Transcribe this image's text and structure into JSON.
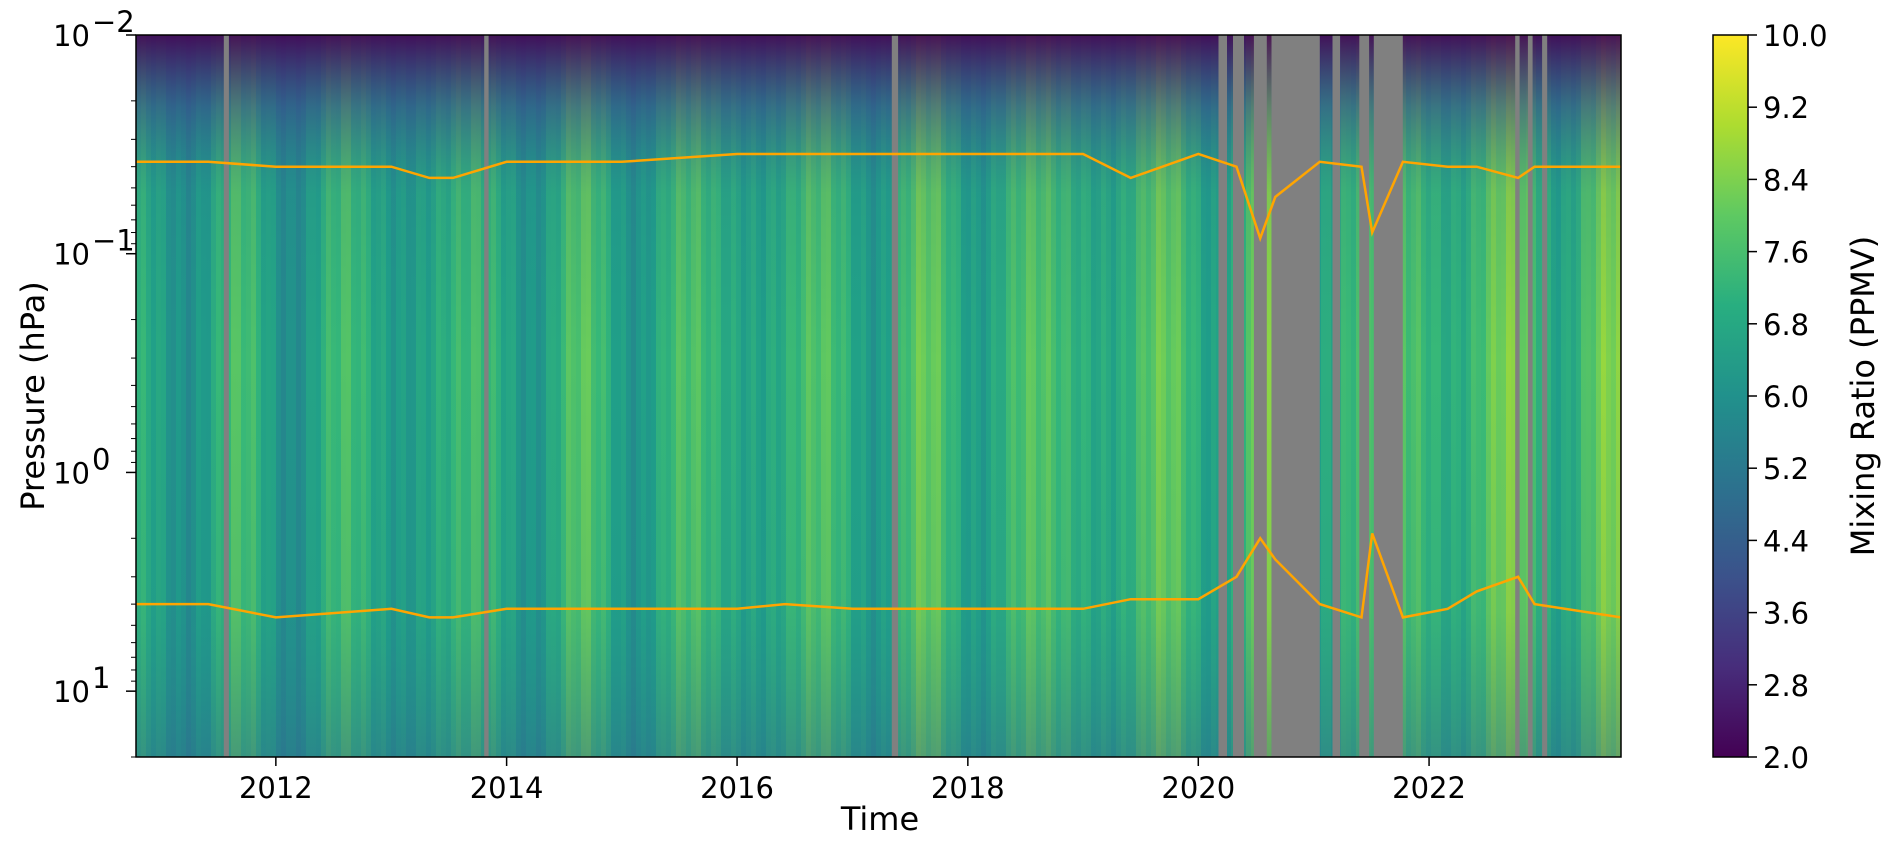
{
  "chart_data": {
    "type": "heatmap",
    "xlabel": "Time",
    "ylabel": "Pressure (hPa)",
    "x_axis": {
      "type": "time",
      "range": [
        "2010-10-15",
        "2023-09-01"
      ],
      "ticks": [
        "2012",
        "2014",
        "2016",
        "2018",
        "2020",
        "2022"
      ]
    },
    "y_axis": {
      "scale": "log",
      "inverted": true,
      "range": [
        20,
        0.01
      ],
      "ticks": [
        {
          "value": 0.01,
          "base": "10",
          "exp": "−2"
        },
        {
          "value": 0.1,
          "base": "10",
          "exp": "−1"
        },
        {
          "value": 1,
          "base": "10",
          "exp": "0"
        },
        {
          "value": 10,
          "base": "10",
          "exp": "1"
        }
      ]
    },
    "colorbar": {
      "label": "Mixing Ratio (PPMV)",
      "colormap": "viridis",
      "range": [
        2.0,
        10.0
      ],
      "ticks": [
        "2.0",
        "2.8",
        "3.6",
        "4.4",
        "5.2",
        "6.0",
        "6.8",
        "7.6",
        "8.4",
        "9.2",
        "10.0"
      ]
    },
    "missing_data_color": "#808080",
    "line_color": "#ffa500",
    "missing_data_periods": [
      [
        "2011-07-20",
        "2011-08-05"
      ],
      [
        "2013-10-22",
        "2013-11-05"
      ],
      [
        "2017-05-05",
        "2017-05-25"
      ],
      [
        "2020-03-05",
        "2020-04-01"
      ],
      [
        "2020-04-20",
        "2020-05-25"
      ],
      [
        "2020-06-25",
        "2020-08-05"
      ],
      [
        "2020-08-20",
        "2021-01-20"
      ],
      [
        "2021-03-01",
        "2021-03-25"
      ],
      [
        "2021-05-25",
        "2021-06-25"
      ],
      [
        "2021-07-10",
        "2021-10-10"
      ],
      [
        "2022-10-01",
        "2022-10-15"
      ],
      [
        "2022-11-10",
        "2022-11-25"
      ],
      [
        "2022-12-25",
        "2023-01-10"
      ]
    ],
    "upper_boundary_series": {
      "name": "",
      "x": [
        "2010-10-15",
        "2011-06-01",
        "2012-01-01",
        "2013-01-01",
        "2013-05-01",
        "2013-07-15",
        "2014-01-01",
        "2015-01-01",
        "2016-01-01",
        "2016-06-01",
        "2017-01-01",
        "2018-01-01",
        "2019-01-01",
        "2019-06-01",
        "2020-01-01",
        "2020-05-01",
        "2020-07-15",
        "2020-09-01",
        "2021-01-20",
        "2021-06-01",
        "2021-07-05",
        "2021-10-10",
        "2022-03-01",
        "2022-06-01",
        "2022-10-10",
        "2022-12-01",
        "2023-09-01"
      ],
      "y": [
        0.038,
        0.038,
        0.04,
        0.04,
        0.045,
        0.045,
        0.038,
        0.038,
        0.035,
        0.035,
        0.035,
        0.035,
        0.035,
        0.045,
        0.035,
        0.04,
        0.085,
        0.055,
        0.038,
        0.04,
        0.08,
        0.038,
        0.04,
        0.04,
        0.045,
        0.04,
        0.04
      ]
    },
    "lower_boundary_series": {
      "name": "",
      "x": [
        "2010-10-15",
        "2011-06-01",
        "2012-01-01",
        "2013-01-01",
        "2013-05-01",
        "2013-07-15",
        "2014-01-01",
        "2015-01-01",
        "2016-01-01",
        "2016-06-01",
        "2017-01-01",
        "2018-01-01",
        "2019-01-01",
        "2019-06-01",
        "2020-01-01",
        "2020-05-01",
        "2020-07-15",
        "2020-09-01",
        "2021-01-20",
        "2021-06-01",
        "2021-07-05",
        "2021-10-10",
        "2022-03-01",
        "2022-06-01",
        "2022-10-10",
        "2022-12-01",
        "2023-09-01"
      ],
      "y": [
        4.0,
        4.0,
        4.6,
        4.2,
        4.6,
        4.6,
        4.2,
        4.2,
        4.2,
        4.0,
        4.2,
        4.2,
        4.2,
        3.8,
        3.8,
        3.0,
        2.0,
        2.5,
        4.0,
        4.6,
        1.9,
        4.6,
        4.2,
        3.5,
        3.0,
        4.0,
        4.6
      ]
    }
  }
}
